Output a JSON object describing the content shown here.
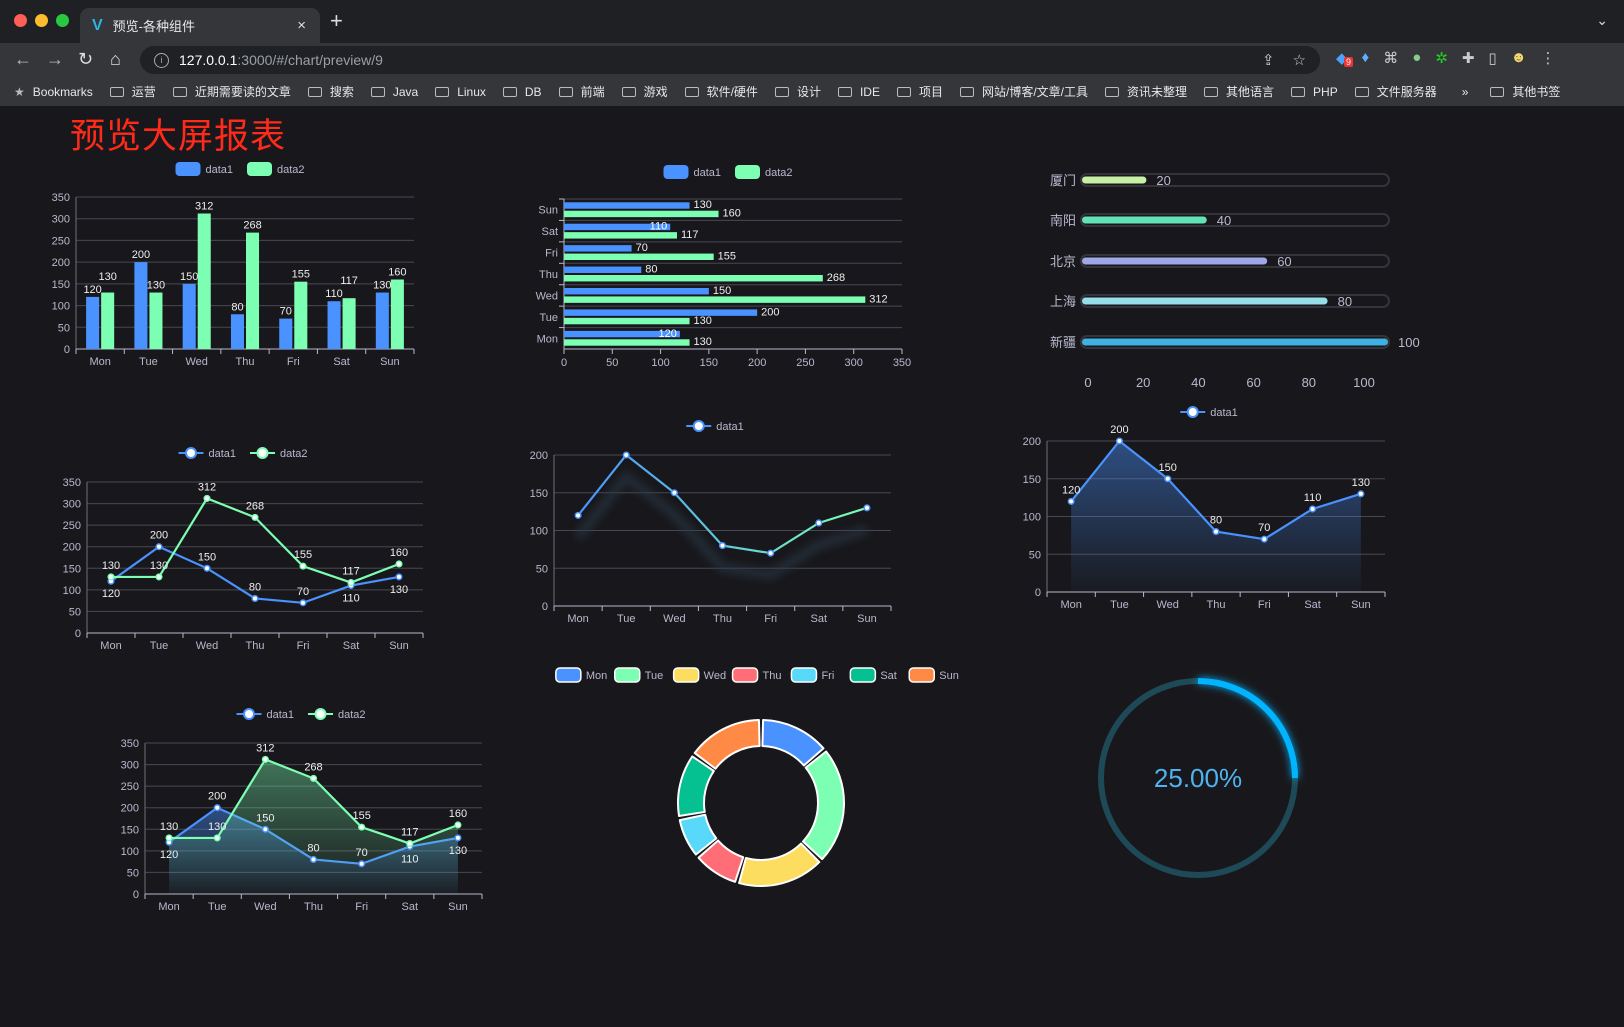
{
  "browser": {
    "tab_title": "预览-各种组件",
    "tab_close": "×",
    "new_tab": "+",
    "tab_menu": "⌄",
    "url_host": "127.0.0.1",
    "url_path": ":3000/#/chart/preview/9",
    "extension_badge": "9",
    "bookmarks": [
      "Bookmarks",
      "运营",
      "近期需要读的文章",
      "搜索",
      "Java",
      "Linux",
      "DB",
      "前端",
      "游戏",
      "软件/硬件",
      "设计",
      "IDE",
      "项目",
      "网站/博客/文章/工具",
      "资讯未整理",
      "其他语言",
      "PHP",
      "文件服务器"
    ],
    "more": "»",
    "other_bookmarks": "其他书签"
  },
  "page": {
    "title": "预览大屏报表",
    "title_color": "#ff2a1a",
    "background": "#18181c"
  },
  "colors": {
    "blue": "#4992ff",
    "green": "#7cffb2",
    "yellow": "#fddd60",
    "red": "#ff6e76",
    "cyan": "#58d9f9",
    "teal": "#05c091",
    "orange": "#ff8a45",
    "text": "#b9b8ce",
    "grid": "#484753"
  },
  "chart_data": [
    {
      "type": "bar",
      "categories": [
        "Mon",
        "Tue",
        "Wed",
        "Thu",
        "Fri",
        "Sat",
        "Sun"
      ],
      "series": [
        {
          "name": "data1",
          "values": [
            120,
            200,
            150,
            80,
            70,
            110,
            130
          ]
        },
        {
          "name": "data2",
          "values": [
            130,
            130,
            312,
            268,
            155,
            117,
            160
          ]
        }
      ],
      "ylim": [
        0,
        350
      ],
      "yticks": [
        0,
        50,
        100,
        150,
        200,
        250,
        300,
        350
      ],
      "data_labels": true,
      "grid": true,
      "legend": "top"
    },
    {
      "type": "bar",
      "orientation": "horizontal",
      "categories": [
        "Mon",
        "Tue",
        "Wed",
        "Thu",
        "Fri",
        "Sat",
        "Sun"
      ],
      "series": [
        {
          "name": "data1",
          "values": [
            120,
            200,
            150,
            80,
            70,
            110,
            130
          ]
        },
        {
          "name": "data2",
          "values": [
            130,
            130,
            312,
            268,
            155,
            117,
            160
          ]
        }
      ],
      "xlim": [
        0,
        350
      ],
      "xticks": [
        0,
        50,
        100,
        150,
        200,
        250,
        300,
        350
      ],
      "data_labels": true,
      "grid": true,
      "legend": "top"
    },
    {
      "type": "bar",
      "orientation": "horizontal",
      "style": "progress",
      "categories": [
        "厦门",
        "南阳",
        "北京",
        "上海",
        "新疆"
      ],
      "values": [
        20,
        40,
        60,
        80,
        100
      ],
      "colors": [
        "#c8f0a4",
        "#63e3b5",
        "#a0a7e6",
        "#96dee8",
        "#3fb1e3"
      ],
      "xlim": [
        0,
        100
      ],
      "xticks": [
        0,
        20,
        40,
        60,
        80,
        100
      ],
      "data_labels": true
    },
    {
      "type": "line",
      "categories": [
        "Mon",
        "Tue",
        "Wed",
        "Thu",
        "Fri",
        "Sat",
        "Sun"
      ],
      "series": [
        {
          "name": "data1",
          "values": [
            120,
            200,
            150,
            80,
            70,
            110,
            130
          ]
        },
        {
          "name": "data2",
          "values": [
            130,
            130,
            312,
            268,
            155,
            117,
            160
          ]
        }
      ],
      "ylim": [
        0,
        350
      ],
      "yticks": [
        0,
        50,
        100,
        150,
        200,
        250,
        300,
        350
      ],
      "data_labels": true,
      "grid": true,
      "legend": "top"
    },
    {
      "type": "line",
      "categories": [
        "Mon",
        "Tue",
        "Wed",
        "Thu",
        "Fri",
        "Sat",
        "Sun"
      ],
      "series": [
        {
          "name": "data1",
          "values": [
            120,
            200,
            150,
            80,
            70,
            110,
            130
          ]
        }
      ],
      "ylim": [
        0,
        200
      ],
      "yticks": [
        0,
        50,
        100,
        150,
        200
      ],
      "data_labels": false,
      "grid": true,
      "legend": "top",
      "line_gradient": [
        "#4992ff",
        "#7cffb2"
      ]
    },
    {
      "type": "area",
      "categories": [
        "Mon",
        "Tue",
        "Wed",
        "Thu",
        "Fri",
        "Sat",
        "Sun"
      ],
      "series": [
        {
          "name": "data1",
          "values": [
            120,
            200,
            150,
            80,
            70,
            110,
            130
          ]
        }
      ],
      "ylim": [
        0,
        200
      ],
      "yticks": [
        0,
        50,
        100,
        150,
        200
      ],
      "data_labels": true,
      "grid": true,
      "legend": "top"
    },
    {
      "type": "area",
      "categories": [
        "Mon",
        "Tue",
        "Wed",
        "Thu",
        "Fri",
        "Sat",
        "Sun"
      ],
      "series": [
        {
          "name": "data1",
          "values": [
            120,
            200,
            150,
            80,
            70,
            110,
            130
          ]
        },
        {
          "name": "data2",
          "values": [
            130,
            130,
            312,
            268,
            155,
            117,
            160
          ]
        }
      ],
      "ylim": [
        0,
        350
      ],
      "yticks": [
        0,
        50,
        100,
        150,
        200,
        250,
        300,
        350
      ],
      "data_labels": true,
      "grid": true,
      "legend": "top"
    },
    {
      "type": "pie",
      "style": "donut",
      "categories": [
        "Mon",
        "Tue",
        "Wed",
        "Thu",
        "Fri",
        "Sat",
        "Sun"
      ],
      "values": [
        120,
        200,
        150,
        80,
        70,
        110,
        130
      ],
      "legend": "top"
    },
    {
      "type": "gauge",
      "style": "ring",
      "value": 25,
      "max": 100,
      "label": "25.00%",
      "color": "#00b4ff",
      "track_color": "#1e4a58"
    }
  ]
}
